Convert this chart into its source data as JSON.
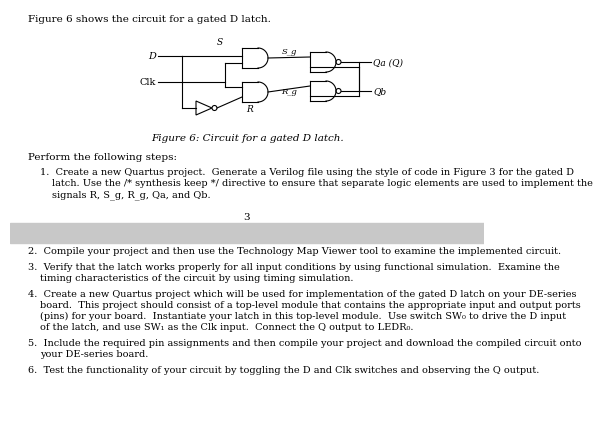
{
  "title_text": "Figure 6 shows the circuit for a gated D latch.",
  "fig_caption": "Figure 6: Circuit for a gated D latch.",
  "page_number": "3",
  "perform_text": "Perform the following steps:",
  "step1_lines": [
    "1.  Create a new Quartus project.  Generate a Verilog file using the style of code in Figure 3 for the gated D",
    "latch. Use the /* synthesis keep */ directive to ensure that separate logic elements are used to implement the",
    "signals R, S_g, R_g, Qa, and Qb."
  ],
  "step2": "2.  Compile your project and then use the Technology Map Viewer tool to examine the implemented circuit.",
  "step3_lines": [
    "3.  Verify that the latch works properly for all input conditions by using functional simulation.  Examine the",
    "timing characteristics of the circuit by using timing simulation."
  ],
  "step4_lines": [
    "4.  Create a new Quartus project which will be used for implementation of the gated D latch on your DE-series",
    "board.  This project should consist of a top-level module that contains the appropriate input and output ports",
    "(pins) for your board.  Instantiate your latch in this top-level module.  Use switch SW₀ to drive the D input",
    "of the latch, and use SW₁ as the Clk input.  Connect the Q output to LEDR₀."
  ],
  "step5_lines": [
    "5.  Include the required pin assignments and then compile your project and download the compiled circuit onto",
    "your DE-series board."
  ],
  "step6": "6.  Test the functionality of your circuit by toggling the D and Clk switches and observing the Q output.",
  "gray_band_color": "#c8c8c8",
  "bg_color": "#ffffff"
}
